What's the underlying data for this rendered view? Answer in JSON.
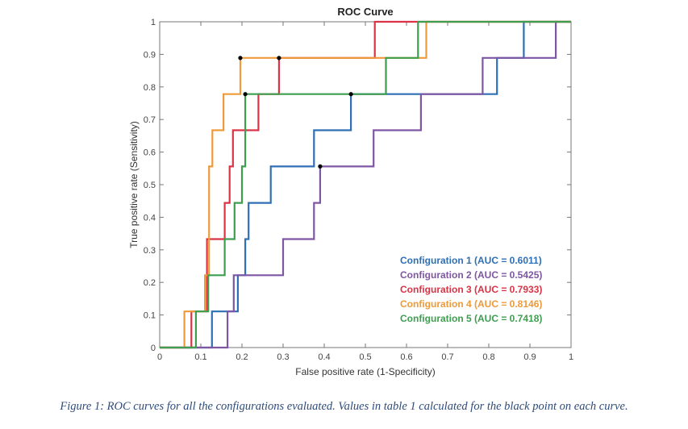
{
  "chart_data": {
    "type": "line",
    "title": "ROC Curve",
    "xlabel": "False positive rate (1-Specificity)",
    "ylabel": "True positive rate (Sensitivity)",
    "xlim": [
      0,
      1
    ],
    "ylim": [
      0,
      1
    ],
    "grid": false,
    "legend_position": "bottom-right",
    "x_ticks": [
      "0",
      "0.1",
      "0.2",
      "0.3",
      "0.4",
      "0.5",
      "0.6",
      "0.7",
      "0.8",
      "0.9",
      "1"
    ],
    "y_ticks": [
      "0",
      "0.1",
      "0.2",
      "0.3",
      "0.4",
      "0.5",
      "0.6",
      "0.7",
      "0.8",
      "0.9",
      "1"
    ],
    "series": [
      {
        "name": "Configuration 1 (AUC = 0.6011)",
        "color": "#2e6fb5",
        "auc": 0.6011,
        "points": [
          [
            0,
            0
          ],
          [
            0.127,
            0
          ],
          [
            0.127,
            0.111
          ],
          [
            0.19,
            0.111
          ],
          [
            0.19,
            0.222
          ],
          [
            0.208,
            0.222
          ],
          [
            0.208,
            0.333
          ],
          [
            0.216,
            0.333
          ],
          [
            0.216,
            0.444
          ],
          [
            0.27,
            0.444
          ],
          [
            0.27,
            0.556
          ],
          [
            0.375,
            0.556
          ],
          [
            0.375,
            0.667
          ],
          [
            0.465,
            0.667
          ],
          [
            0.465,
            0.778
          ],
          [
            0.82,
            0.778
          ],
          [
            0.82,
            0.889
          ],
          [
            0.885,
            0.889
          ],
          [
            0.885,
            1
          ],
          [
            1,
            1
          ]
        ],
        "marker": [
          0.465,
          0.778
        ]
      },
      {
        "name": "Configuration 2 (AUC = 0.5425)",
        "color": "#7f56a3",
        "auc": 0.5425,
        "points": [
          [
            0,
            0
          ],
          [
            0.165,
            0
          ],
          [
            0.165,
            0.111
          ],
          [
            0.18,
            0.111
          ],
          [
            0.18,
            0.222
          ],
          [
            0.3,
            0.222
          ],
          [
            0.3,
            0.333
          ],
          [
            0.375,
            0.333
          ],
          [
            0.375,
            0.444
          ],
          [
            0.39,
            0.444
          ],
          [
            0.39,
            0.556
          ],
          [
            0.52,
            0.556
          ],
          [
            0.52,
            0.667
          ],
          [
            0.635,
            0.667
          ],
          [
            0.635,
            0.778
          ],
          [
            0.785,
            0.778
          ],
          [
            0.785,
            0.889
          ],
          [
            0.963,
            0.889
          ],
          [
            0.963,
            1
          ],
          [
            1,
            1
          ]
        ],
        "marker": [
          0.39,
          0.556
        ]
      },
      {
        "name": "Configuration 3 (AUC = 0.7933)",
        "color": "#d93344",
        "auc": 0.7933,
        "points": [
          [
            0,
            0
          ],
          [
            0.077,
            0
          ],
          [
            0.077,
            0.111
          ],
          [
            0.115,
            0.111
          ],
          [
            0.115,
            0.333
          ],
          [
            0.158,
            0.333
          ],
          [
            0.158,
            0.444
          ],
          [
            0.17,
            0.444
          ],
          [
            0.17,
            0.556
          ],
          [
            0.178,
            0.556
          ],
          [
            0.178,
            0.667
          ],
          [
            0.24,
            0.667
          ],
          [
            0.24,
            0.778
          ],
          [
            0.29,
            0.778
          ],
          [
            0.29,
            0.889
          ],
          [
            0.523,
            0.889
          ],
          [
            0.523,
            1
          ],
          [
            1,
            1
          ]
        ],
        "marker": [
          0.29,
          0.889
        ]
      },
      {
        "name": "Configuration 4 (AUC = 0.8146)",
        "color": "#ee9a3a",
        "auc": 0.8146,
        "points": [
          [
            0,
            0
          ],
          [
            0.06,
            0
          ],
          [
            0.06,
            0.111
          ],
          [
            0.11,
            0.111
          ],
          [
            0.11,
            0.222
          ],
          [
            0.12,
            0.222
          ],
          [
            0.12,
            0.556
          ],
          [
            0.128,
            0.556
          ],
          [
            0.128,
            0.667
          ],
          [
            0.155,
            0.667
          ],
          [
            0.155,
            0.778
          ],
          [
            0.196,
            0.778
          ],
          [
            0.196,
            0.889
          ],
          [
            0.648,
            0.889
          ],
          [
            0.648,
            1
          ],
          [
            1,
            1
          ]
        ],
        "marker": [
          0.196,
          0.889
        ]
      },
      {
        "name": "Configuration 5 (AUC = 0.7418)",
        "color": "#3e9e4f",
        "auc": 0.7418,
        "points": [
          [
            0,
            0
          ],
          [
            0.088,
            0
          ],
          [
            0.088,
            0.111
          ],
          [
            0.118,
            0.111
          ],
          [
            0.118,
            0.222
          ],
          [
            0.158,
            0.222
          ],
          [
            0.158,
            0.333
          ],
          [
            0.182,
            0.333
          ],
          [
            0.182,
            0.444
          ],
          [
            0.2,
            0.444
          ],
          [
            0.2,
            0.556
          ],
          [
            0.208,
            0.556
          ],
          [
            0.208,
            0.778
          ],
          [
            0.55,
            0.778
          ],
          [
            0.55,
            0.889
          ],
          [
            0.628,
            0.889
          ],
          [
            0.628,
            1
          ],
          [
            1,
            1
          ]
        ],
        "marker": [
          0.208,
          0.778
        ]
      }
    ]
  },
  "caption": "Figure 1: ROC curves for all the configurations evaluated. Values in table 1 calculated for the black point on each curve."
}
